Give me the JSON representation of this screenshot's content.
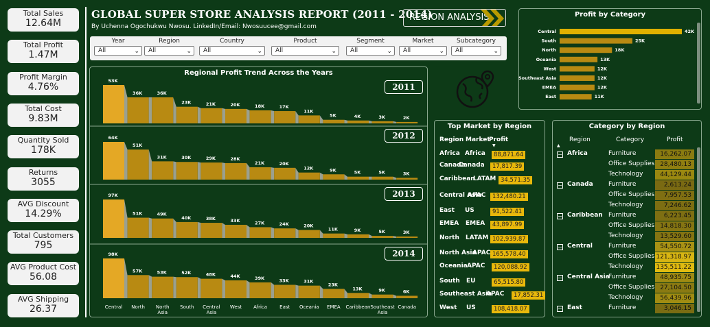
{
  "kpis": [
    {
      "label": "Total Sales",
      "value": "12.64M"
    },
    {
      "label": "Total Profit",
      "value": "1.47M"
    },
    {
      "label": "Profit Margin",
      "value": "4.76%"
    },
    {
      "label": "Total Cost",
      "value": "9.83M"
    },
    {
      "label": "Quantity Sold",
      "value": "178K"
    },
    {
      "label": "Returns",
      "value": "3055"
    },
    {
      "label": "AVG Discount",
      "value": "14.29%"
    },
    {
      "label": "Total Customers",
      "value": "795"
    },
    {
      "label": "AVG Product Cost",
      "value": "56.08"
    },
    {
      "label": "AVG Shipping",
      "value": "26.37"
    }
  ],
  "header": {
    "title": "GLOBAL SUPER STORE ANALYSIS REPORT (2011 - 2014)",
    "byline": "By Uchenna Ogochukwu Nwosu. LinkedIn/Email: Nwosuucee@gmail.com",
    "region_button": "REGION ANALYSIS"
  },
  "filters": [
    {
      "label": "Year",
      "value": "All"
    },
    {
      "label": "Region",
      "value": "All"
    },
    {
      "label": "Country",
      "value": "All"
    },
    {
      "label": "Product",
      "value": "All"
    },
    {
      "label": "Segment",
      "value": "All"
    },
    {
      "label": "Market",
      "value": "All"
    },
    {
      "label": "Subcategory",
      "value": "All"
    }
  ],
  "colors": {
    "accent": "#e8b80b",
    "bar_dark": "#b88a12",
    "bar_first": "#e4a825",
    "panel_bg": "#0d3a17"
  },
  "icons": {
    "globe": "globe-location-icon"
  },
  "trend_chart": {
    "title": "Regional Profit Trend Across the Years",
    "type": "bar",
    "categories": [
      "Central",
      "North",
      "North Asia",
      "South",
      "Central Asia",
      "West",
      "Africa",
      "East",
      "Oceania",
      "EMEA",
      "Caribbean",
      "Southeast Asia",
      "Canada"
    ],
    "category_labels": [
      [
        "Central"
      ],
      [
        "North"
      ],
      [
        "North",
        "Asia"
      ],
      [
        "South"
      ],
      [
        "Central",
        "Asia"
      ],
      [
        "West"
      ],
      [
        "Africa"
      ],
      [
        "East"
      ],
      [
        "Oceania"
      ],
      [
        "EMEA"
      ],
      [
        "Caribbean"
      ],
      [
        "Southeast",
        "Asia"
      ],
      [
        "Canada"
      ]
    ],
    "years": [
      {
        "year": "2011",
        "values": [
          53,
          36,
          36,
          23,
          21,
          20,
          18,
          17,
          11,
          5,
          4,
          3,
          2
        ]
      },
      {
        "year": "2012",
        "values": [
          64,
          51,
          31,
          30,
          29,
          28,
          21,
          20,
          12,
          9,
          5,
          5,
          3
        ]
      },
      {
        "year": "2013",
        "values": [
          97,
          51,
          49,
          40,
          38,
          33,
          27,
          24,
          20,
          11,
          9,
          5,
          3
        ]
      },
      {
        "year": "2014",
        "values": [
          98,
          57,
          53,
          52,
          48,
          44,
          39,
          33,
          31,
          23,
          13,
          9,
          6
        ]
      }
    ]
  },
  "chart_data": [
    {
      "type": "bar",
      "title": "Profit by Category",
      "categories": [
        "Central",
        "South",
        "North",
        "Oceania",
        "West",
        "Southeast Asia",
        "EMEA",
        "East"
      ],
      "values": [
        42,
        25,
        18,
        13,
        12,
        12,
        12,
        11
      ],
      "value_labels": [
        "42K",
        "25K",
        "18K",
        "13K",
        "12K",
        "12K",
        "12K",
        "11K"
      ]
    }
  ],
  "top_market": {
    "title": "Top Market by Region",
    "headers": [
      "Region",
      "Market",
      "Profit"
    ],
    "rows": [
      {
        "region": "Africa",
        "market": "Africa",
        "profit": "88,871.64"
      },
      {
        "region": "Canada",
        "market": "Canada",
        "profit": "17,817.39"
      },
      {
        "region": "Caribbean",
        "market": "LATAM",
        "profit": "34,571.35"
      },
      {
        "region": "Central Asia",
        "market": "APAC",
        "profit": "132,480.21"
      },
      {
        "region": "East",
        "market": "US",
        "profit": "91,522.41"
      },
      {
        "region": "EMEA",
        "market": "EMEA",
        "profit": "43,897.99"
      },
      {
        "region": "North",
        "market": "LATAM",
        "profit": "102,939.87"
      },
      {
        "region": "North Asia",
        "market": "APAC",
        "profit": "165,578.40"
      },
      {
        "region": "Oceania",
        "market": "APAC",
        "profit": "120,088.92"
      },
      {
        "region": "South",
        "market": "EU",
        "profit": "65,515.80"
      },
      {
        "region": "Southeast Asia",
        "market": "APAC",
        "profit": "17,852.31"
      },
      {
        "region": "West",
        "market": "US",
        "profit": "108,418.07"
      }
    ]
  },
  "category_region": {
    "title": "Category by Region",
    "headers": [
      "Region",
      "Category",
      "Profit"
    ],
    "rows": [
      {
        "region": "Africa",
        "category": "Furniture",
        "profit": "16,262.07"
      },
      {
        "region": "",
        "category": "Office Supplies",
        "profit": "28,480.13"
      },
      {
        "region": "",
        "category": "Technology",
        "profit": "44,129.44"
      },
      {
        "region": "Canada",
        "category": "Furniture",
        "profit": "2,613.24"
      },
      {
        "region": "",
        "category": "Office Supplies",
        "profit": "7,957.53"
      },
      {
        "region": "",
        "category": "Technology",
        "profit": "7,246.62"
      },
      {
        "region": "Caribbean",
        "category": "Furniture",
        "profit": "6,223.45"
      },
      {
        "region": "",
        "category": "Office Supplies",
        "profit": "14,818.30"
      },
      {
        "region": "",
        "category": "Technology",
        "profit": "13,529.60"
      },
      {
        "region": "Central",
        "category": "Furniture",
        "profit": "54,550.72"
      },
      {
        "region": "",
        "category": "Office Supplies",
        "profit": "121,318.97"
      },
      {
        "region": "",
        "category": "Technology",
        "profit": "135,511.22"
      },
      {
        "region": "Central Asia",
        "category": "Furniture",
        "profit": "48,935.75"
      },
      {
        "region": "",
        "category": "Office Supplies",
        "profit": "27,104.50"
      },
      {
        "region": "",
        "category": "Technology",
        "profit": "56,439.96"
      },
      {
        "region": "East",
        "category": "Furniture",
        "profit": "3,046.15"
      }
    ]
  }
}
